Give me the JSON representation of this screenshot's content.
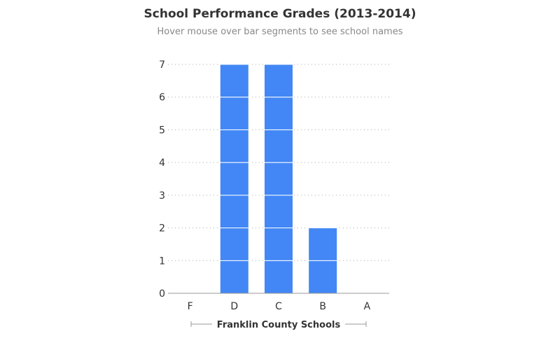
{
  "chart_data": {
    "type": "bar",
    "title": "School Performance Grades (2013-2014)",
    "subtitle": "Hover mouse over bar segments to see school names",
    "categories": [
      "F",
      "D",
      "C",
      "B",
      "A"
    ],
    "values": [
      0,
      7,
      7,
      2,
      0
    ],
    "xlabel": "Franklin County Schools",
    "ylabel": "",
    "ylim": [
      0,
      7
    ],
    "yticks": [
      "0",
      "1",
      "2",
      "3",
      "4",
      "5",
      "6",
      "7"
    ],
    "grid": true,
    "bar_color": "#4287f5"
  }
}
